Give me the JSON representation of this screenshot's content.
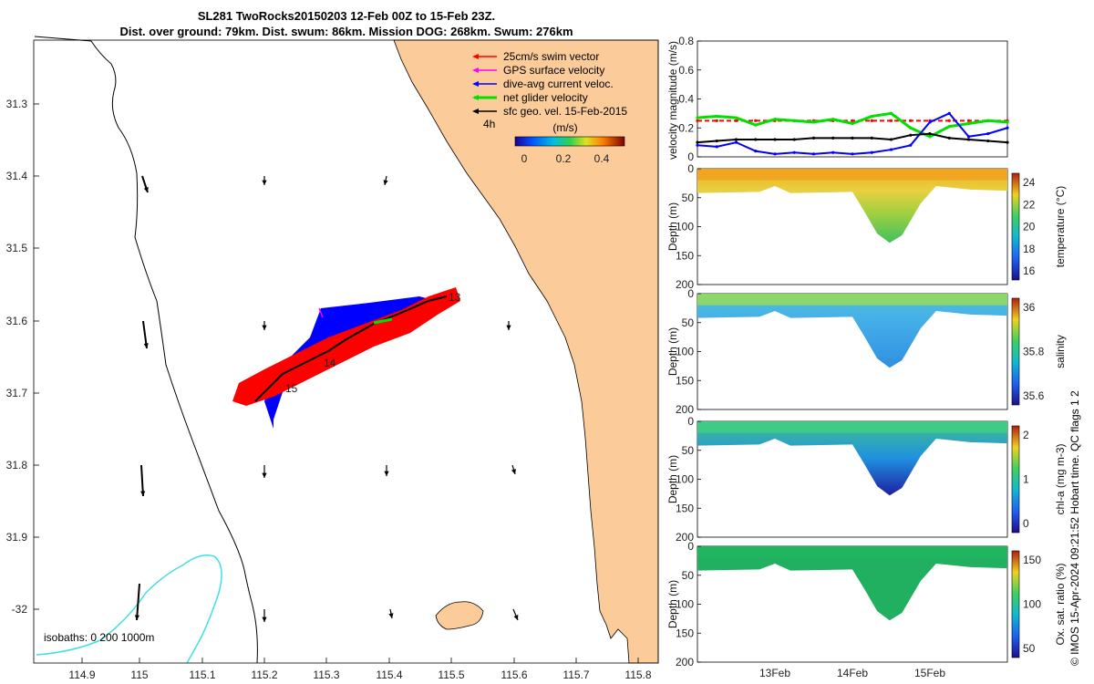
{
  "title": {
    "line1": "SL281 TwoRocks20150203 12-Feb 00Z to 15-Feb 23Z.",
    "line2": "Dist. over ground: 79km. Dist. swum: 86km. Mission DOG: 268km. Swum: 276km"
  },
  "colors": {
    "land": "#fbcb9a",
    "coast": "#000000",
    "isobath_1000": "#40e0e0",
    "swim_vector": "#ff0000",
    "gps_surface": "#ff00ff",
    "dive_avg": "#0000ff",
    "net_glider": "#00e000",
    "sfc_geo": "#000000"
  },
  "map": {
    "legend": [
      {
        "label": "25cm/s swim vector",
        "color": "#ff0000"
      },
      {
        "label": "GPS surface velocity",
        "color": "#ff00ff"
      },
      {
        "label": "dive-avg current veloc.",
        "color": "#0000ff"
      },
      {
        "label": "net glider velocity",
        "color": "#00e000"
      },
      {
        "label": "sfc geo. vel. 15-Feb-2015",
        "color": "#000000"
      }
    ],
    "interval_label": "4h",
    "colorbar_title": "(m/s)",
    "colorbar_ticks": [
      "0",
      "0.2",
      "0.4"
    ],
    "isobaths_label": "isobaths: 0   200  1000m",
    "lon_ticks": [
      "114.9",
      "115",
      "115.1",
      "115.2",
      "115.3",
      "115.4",
      "115.5",
      "115.6",
      "115.7",
      "115.8"
    ],
    "lat_ticks": [
      "31.3",
      "31.4",
      "31.5",
      "31.6",
      "31.7",
      "31.8",
      "31.9",
      "-32"
    ],
    "day_labels": [
      "13",
      "14",
      "15"
    ]
  },
  "velocity_panel": {
    "ylabel": "velocity magnitude (m/s)",
    "y_ticks": [
      "0",
      "0.2",
      "0.4",
      "0.6",
      "0.8"
    ],
    "ylim": [
      0,
      0.8
    ]
  },
  "sections": [
    {
      "id": "temperature",
      "ylabel": "Depth (m)",
      "cbar_label": "temperature (°C)",
      "cbar_ticks": [
        "16",
        "18",
        "20",
        "22",
        "24"
      ],
      "depth_ticks": [
        "0",
        "50",
        "100",
        "150",
        "200"
      ]
    },
    {
      "id": "salinity",
      "ylabel": "Depth (m)",
      "cbar_label": "salinity",
      "cbar_ticks": [
        "35.6",
        "35.8",
        "36"
      ],
      "depth_ticks": [
        "0",
        "50",
        "100",
        "150",
        "200"
      ]
    },
    {
      "id": "chla",
      "ylabel": "Depth (m)",
      "cbar_label": "chl-a (mg m-3)",
      "cbar_ticks": [
        "0",
        "1",
        "2"
      ],
      "depth_ticks": [
        "0",
        "50",
        "100",
        "150",
        "200"
      ]
    },
    {
      "id": "oxygen",
      "ylabel": "Depth (m)",
      "cbar_label": "Ox. sat. ratio (%)",
      "cbar_ticks": [
        "50",
        "100",
        "150"
      ],
      "depth_ticks": [
        "0",
        "50",
        "100",
        "150",
        "200"
      ]
    }
  ],
  "time_ticks": [
    "13Feb",
    "14Feb",
    "15Feb"
  ],
  "copyright": "© IMOS 15-Apr-2024 09:21:52 Hobart time. QC flags 1  2",
  "chart_data": [
    {
      "type": "line",
      "title": "",
      "ylabel": "velocity magnitude (m/s)",
      "ylim": [
        0,
        0.8
      ],
      "x_days": [
        0,
        0.25,
        0.5,
        0.75,
        1.0,
        1.25,
        1.5,
        1.75,
        2.0,
        2.25,
        2.5,
        2.75,
        3.0,
        3.25,
        3.5,
        3.75,
        4.0
      ],
      "series": [
        {
          "name": "25cm/s swim vector",
          "color": "#ff0000",
          "values": [
            0.25,
            0.25,
            0.25,
            0.25,
            0.25,
            0.25,
            0.25,
            0.25,
            0.25,
            0.25,
            0.25,
            0.25,
            0.25,
            0.25,
            0.25,
            0.25,
            0.25
          ]
        },
        {
          "name": "net glider velocity",
          "color": "#00e000",
          "values": [
            0.27,
            0.28,
            0.27,
            0.22,
            0.26,
            0.25,
            0.24,
            0.26,
            0.23,
            0.28,
            0.3,
            0.2,
            0.14,
            0.21,
            0.23,
            0.25,
            0.24
          ]
        },
        {
          "name": "dive-avg current veloc.",
          "color": "#0000ff",
          "values": [
            0.08,
            0.07,
            0.1,
            0.04,
            0.02,
            0.03,
            0.02,
            0.03,
            0.02,
            0.03,
            0.05,
            0.08,
            0.24,
            0.3,
            0.14,
            0.16,
            0.2
          ]
        },
        {
          "name": "sfc geo. vel. 15-Feb-2015",
          "color": "#000000",
          "values": [
            0.1,
            0.11,
            0.12,
            0.12,
            0.12,
            0.12,
            0.13,
            0.13,
            0.13,
            0.13,
            0.12,
            0.15,
            0.16,
            0.13,
            0.12,
            0.11,
            0.1
          ]
        }
      ]
    }
  ]
}
